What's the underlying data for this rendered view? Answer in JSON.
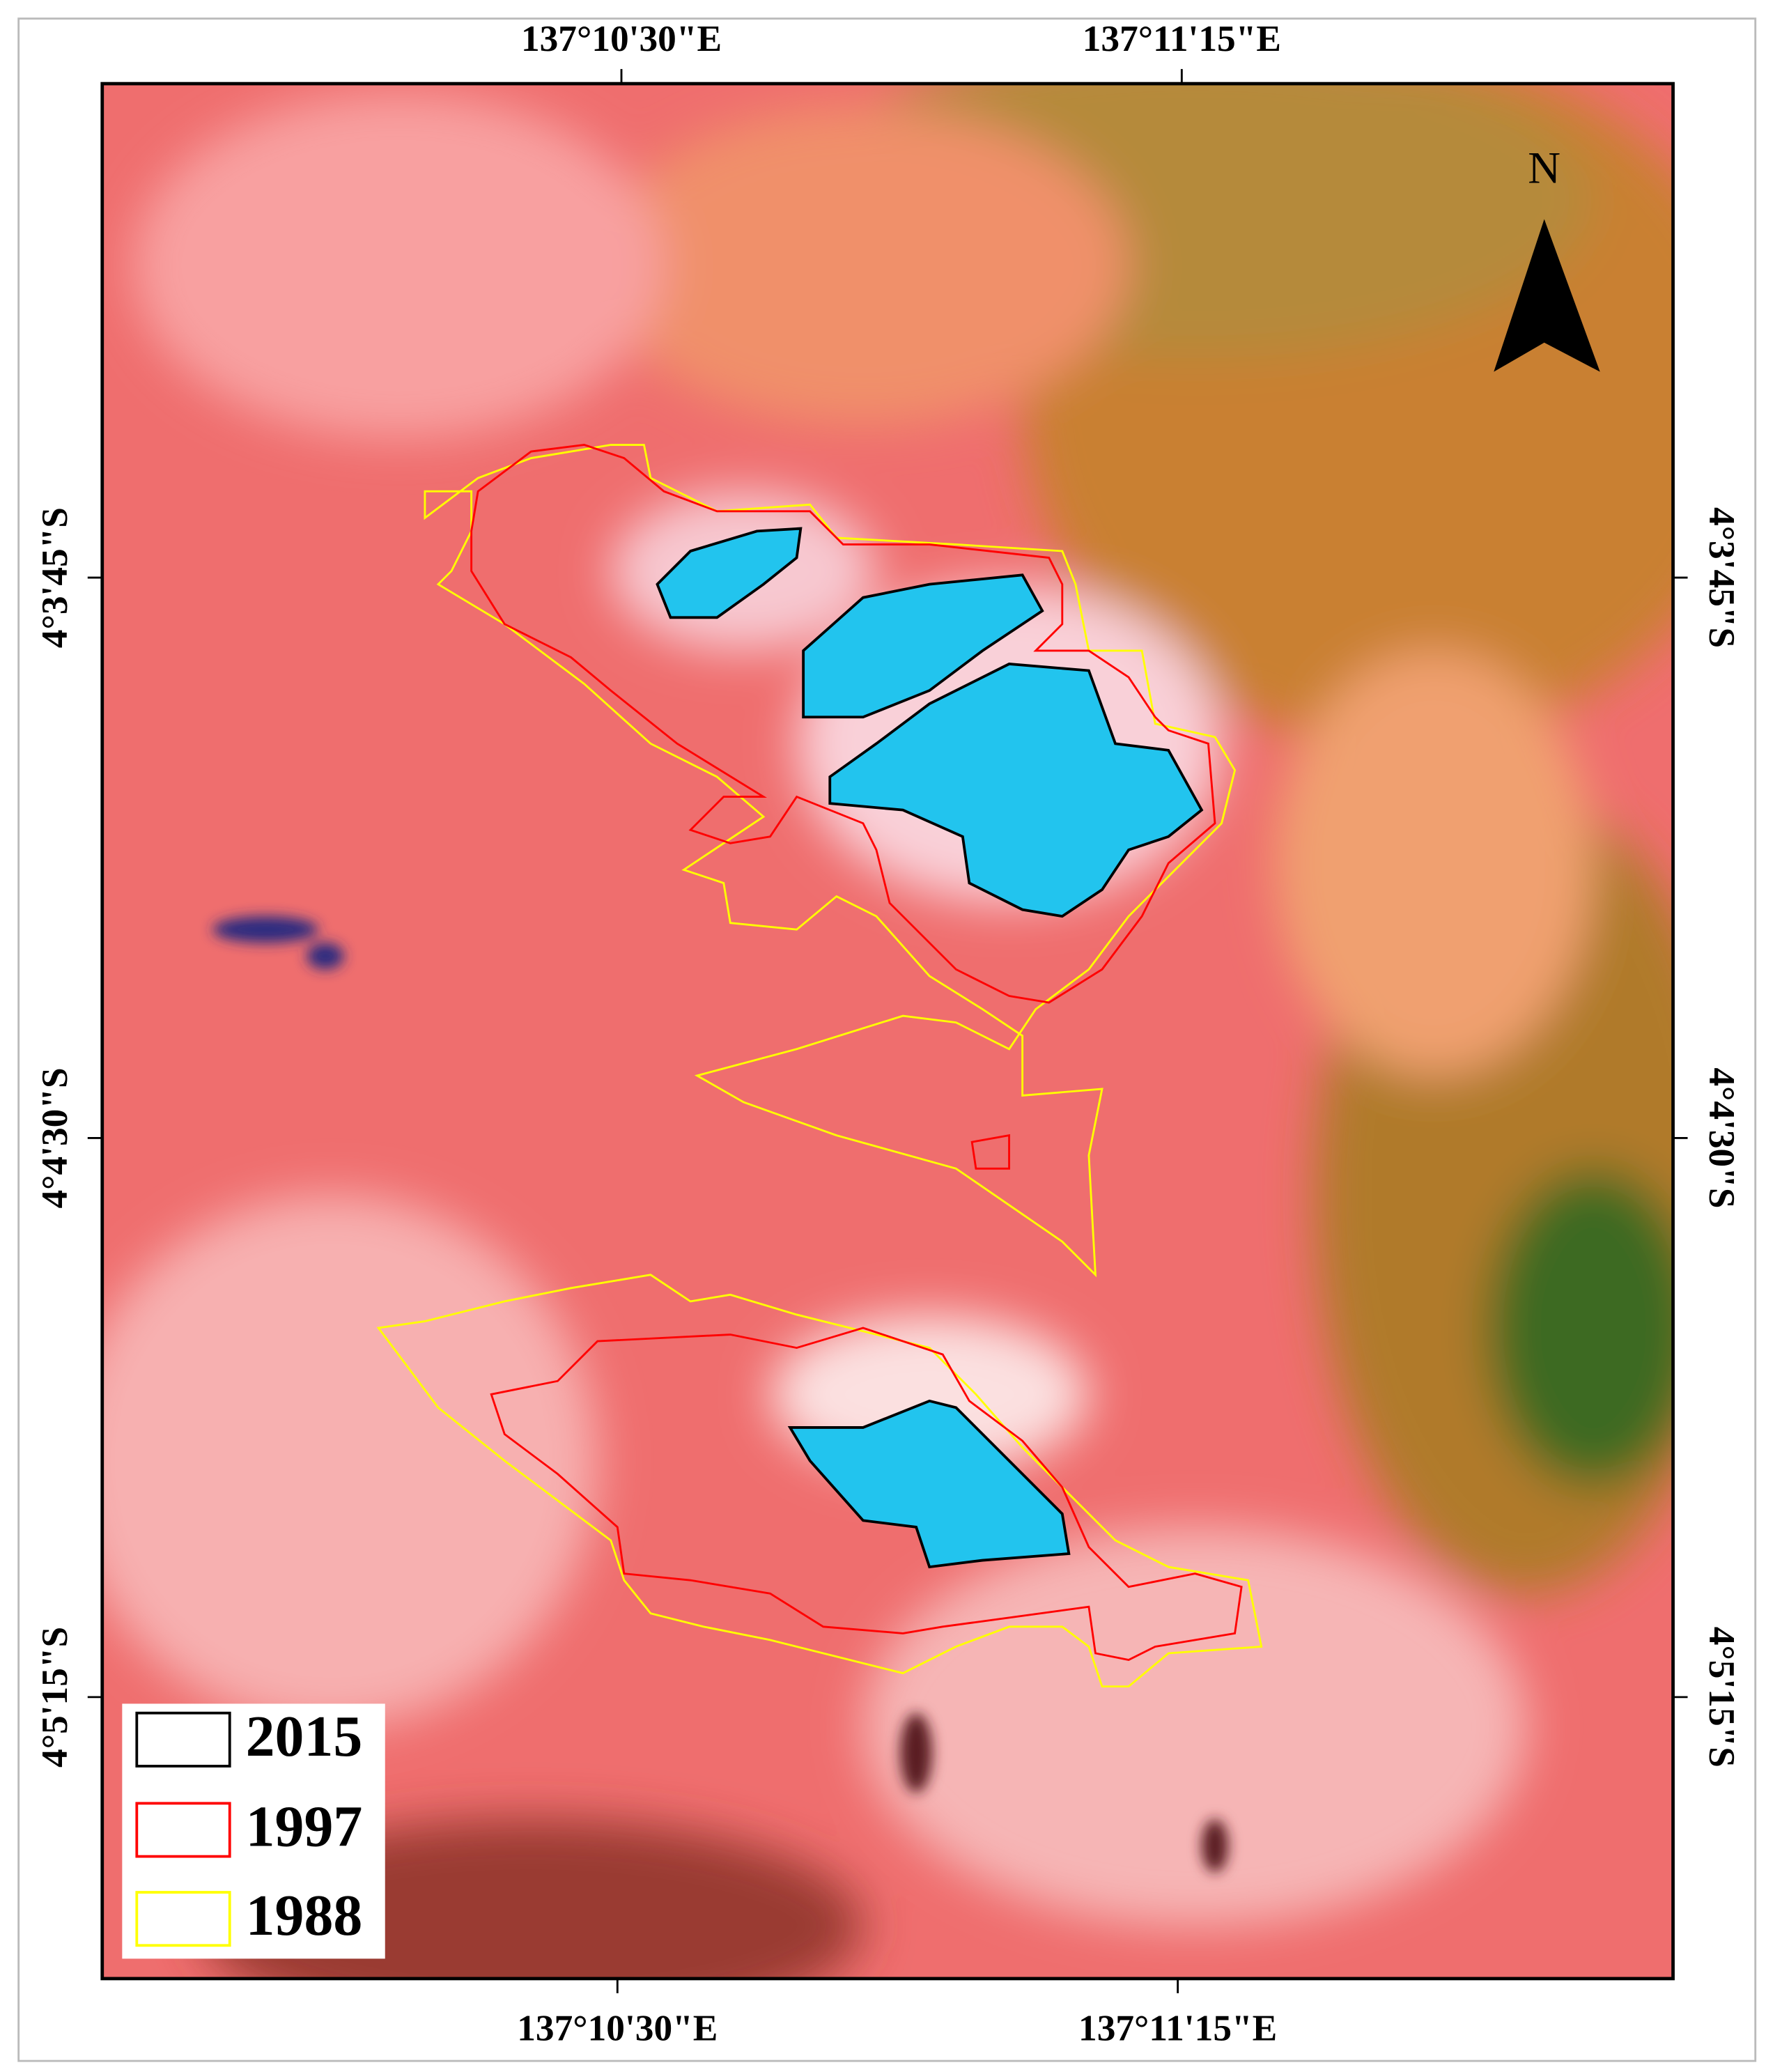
{
  "map": {
    "top_axis_labels": [
      "137°10'30\"E",
      "137°11'15\"E"
    ],
    "bottom_axis_labels": [
      "137°10'30\"E",
      "137°11'15\"E"
    ],
    "left_axis_labels": [
      "4°3'45\"S",
      "4°4'30\"S",
      "4°5'15\"S"
    ],
    "right_axis_labels": [
      "4°3'45\"S",
      "4°4'30\"S",
      "4°5'15\"S"
    ],
    "north_label": "N",
    "legend": [
      {
        "label": "2015",
        "color": "#000000"
      },
      {
        "label": "1997",
        "color": "#ff0000"
      },
      {
        "label": "1988",
        "color": "#ffff00"
      }
    ]
  }
}
